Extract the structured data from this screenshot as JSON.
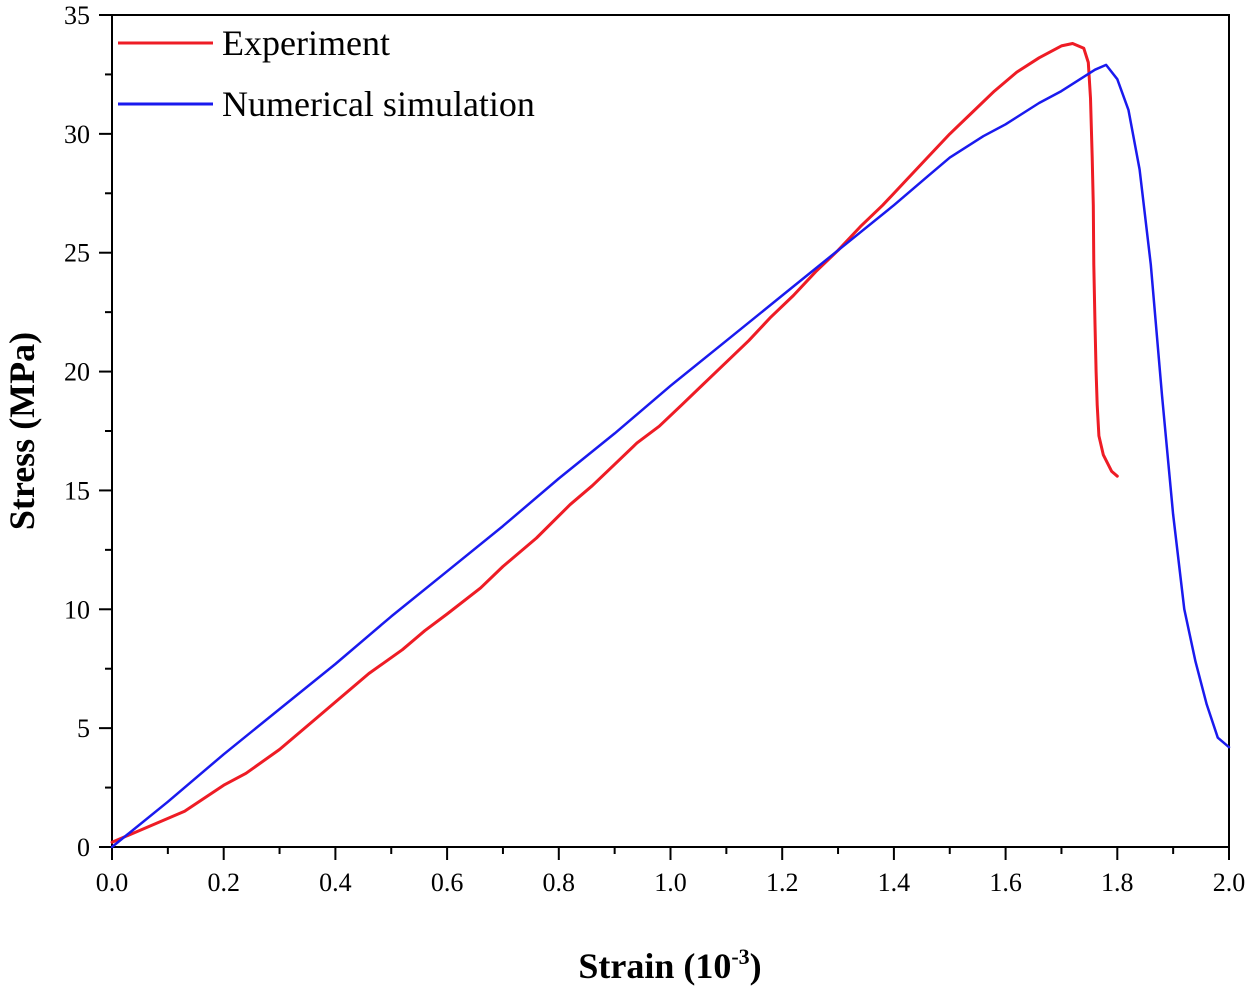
{
  "chart_data": {
    "type": "line",
    "title": "",
    "xlabel": "Strain (10",
    "xlabel_sup": "-3",
    "xlabel_close": ")",
    "ylabel": "Stress (MPa)",
    "xlim": [
      0.0,
      2.0
    ],
    "ylim": [
      0,
      35
    ],
    "x_ticks": [
      0.0,
      0.2,
      0.4,
      0.6,
      0.8,
      1.0,
      1.2,
      1.4,
      1.6,
      1.8,
      2.0
    ],
    "x_tick_labels": [
      "0.0",
      "0.2",
      "0.4",
      "0.6",
      "0.8",
      "1.0",
      "1.2",
      "1.4",
      "1.6",
      "1.8",
      "2.0"
    ],
    "y_ticks": [
      0,
      5,
      10,
      15,
      20,
      25,
      30,
      35
    ],
    "y_tick_labels": [
      "0",
      "5",
      "10",
      "15",
      "20",
      "25",
      "30",
      "35"
    ],
    "legend_position": "top-left",
    "series": [
      {
        "name": "Experiment",
        "color": "#ee1c25",
        "x": [
          0.0,
          0.05,
          0.13,
          0.2,
          0.24,
          0.3,
          0.36,
          0.4,
          0.46,
          0.52,
          0.56,
          0.6,
          0.66,
          0.7,
          0.76,
          0.82,
          0.86,
          0.9,
          0.94,
          0.98,
          1.02,
          1.06,
          1.1,
          1.14,
          1.18,
          1.22,
          1.26,
          1.3,
          1.34,
          1.38,
          1.42,
          1.46,
          1.5,
          1.54,
          1.58,
          1.62,
          1.66,
          1.7,
          1.72,
          1.74,
          1.748,
          1.752,
          1.755,
          1.757,
          1.758,
          1.76,
          1.762,
          1.764,
          1.767,
          1.775,
          1.79,
          1.8
        ],
        "y": [
          0.2,
          0.7,
          1.5,
          2.6,
          3.1,
          4.1,
          5.3,
          6.1,
          7.3,
          8.3,
          9.1,
          9.8,
          10.9,
          11.8,
          13.0,
          14.4,
          15.2,
          16.1,
          17.0,
          17.7,
          18.6,
          19.5,
          20.4,
          21.3,
          22.3,
          23.2,
          24.2,
          25.1,
          26.1,
          27.0,
          28.0,
          29.0,
          30.0,
          30.9,
          31.8,
          32.6,
          33.2,
          33.7,
          33.8,
          33.6,
          33.0,
          31.5,
          29.0,
          27.0,
          24.5,
          22.0,
          20.0,
          18.6,
          17.3,
          16.5,
          15.8,
          15.6
        ]
      },
      {
        "name": "Numerical simulation",
        "color": "#1a1aee",
        "x": [
          0.0,
          0.1,
          0.2,
          0.3,
          0.4,
          0.5,
          0.6,
          0.7,
          0.8,
          0.9,
          1.0,
          1.1,
          1.2,
          1.3,
          1.4,
          1.46,
          1.5,
          1.56,
          1.6,
          1.66,
          1.7,
          1.74,
          1.76,
          1.78,
          1.8,
          1.82,
          1.84,
          1.86,
          1.88,
          1.9,
          1.92,
          1.94,
          1.96,
          1.98,
          2.0
        ],
        "y": [
          0.0,
          1.9,
          3.9,
          5.8,
          7.7,
          9.7,
          11.6,
          13.5,
          15.5,
          17.4,
          19.4,
          21.3,
          23.2,
          25.1,
          27.0,
          28.2,
          29.0,
          29.9,
          30.4,
          31.3,
          31.8,
          32.4,
          32.7,
          32.9,
          32.3,
          31.0,
          28.5,
          24.5,
          19.0,
          14.0,
          10.0,
          7.8,
          6.0,
          4.6,
          4.2
        ]
      }
    ]
  }
}
